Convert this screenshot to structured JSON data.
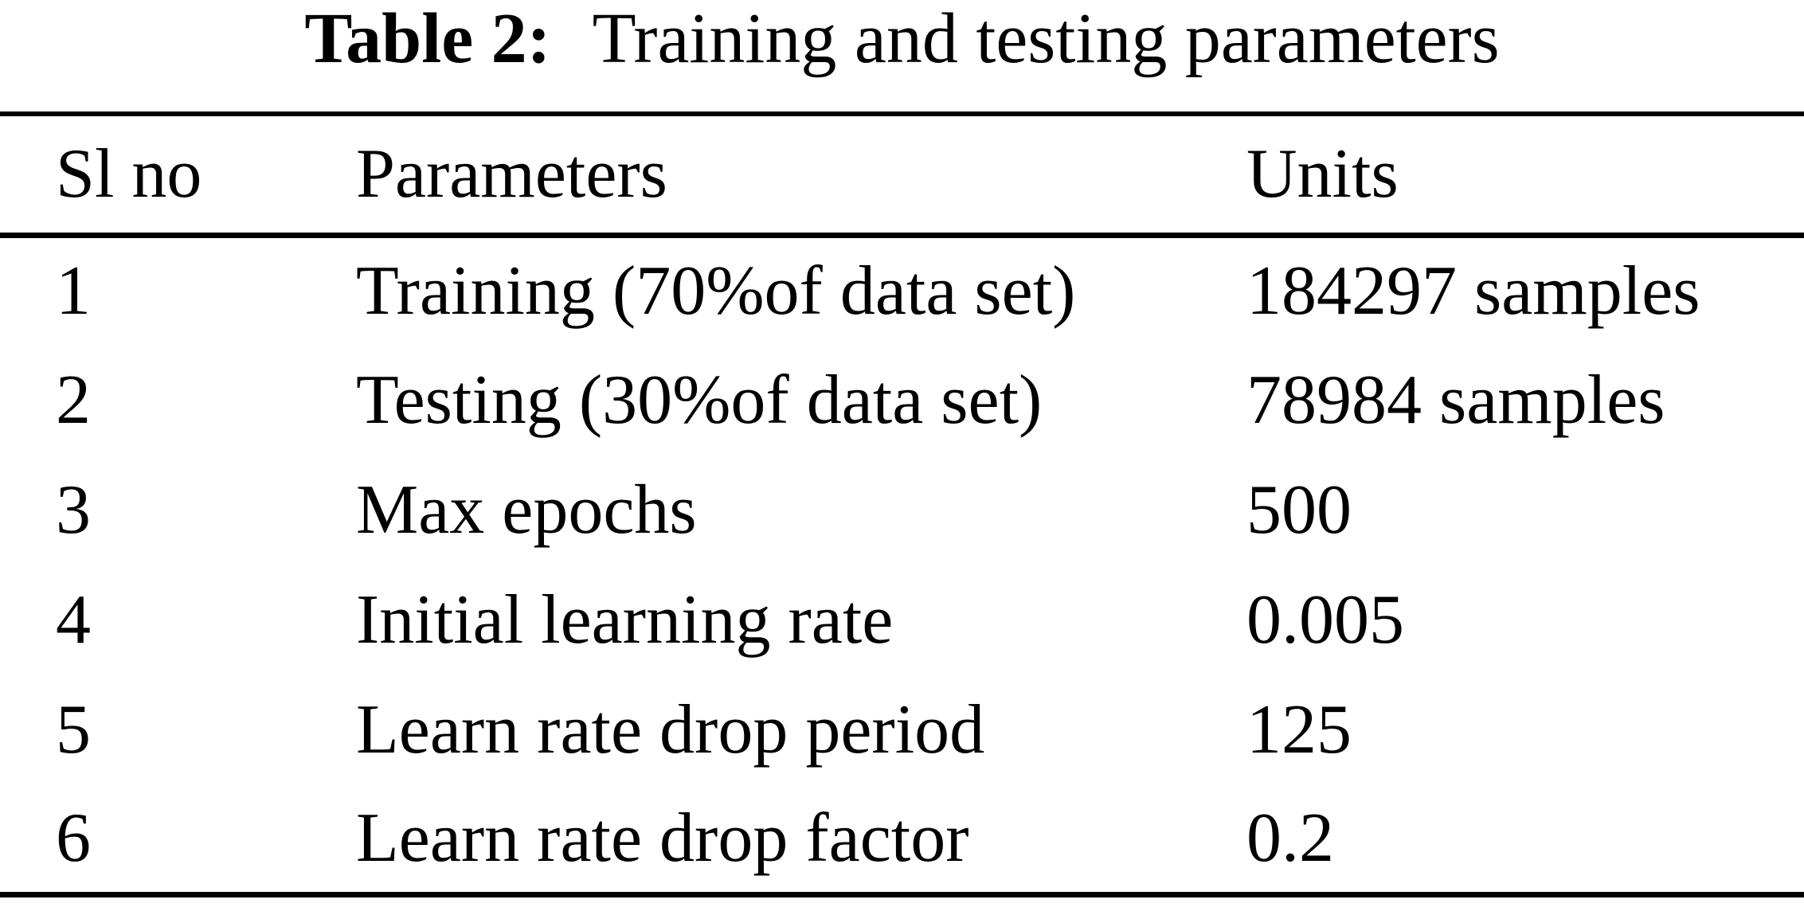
{
  "caption": {
    "label": "Table 2:",
    "title": "Training and testing parameters"
  },
  "table": {
    "columns": {
      "sl_no": "Sl no",
      "parameter": "Parameters",
      "units": "Units"
    },
    "rows": [
      {
        "sl_no": "1",
        "parameter": "Training (70%of data set)",
        "units": "184297 samples"
      },
      {
        "sl_no": "2",
        "parameter": "Testing (30%of data set)",
        "units": "78984 samples"
      },
      {
        "sl_no": "3",
        "parameter": "Max epochs",
        "units": "500"
      },
      {
        "sl_no": "4",
        "parameter": "Initial learning rate",
        "units": "0.005"
      },
      {
        "sl_no": "5",
        "parameter": "Learn rate drop period",
        "units": "125"
      },
      {
        "sl_no": "6",
        "parameter": "Learn rate drop factor",
        "units": "0.2"
      }
    ],
    "colors": {
      "text": "#000000",
      "background": "#ffffff",
      "rule": "#000000"
    }
  }
}
